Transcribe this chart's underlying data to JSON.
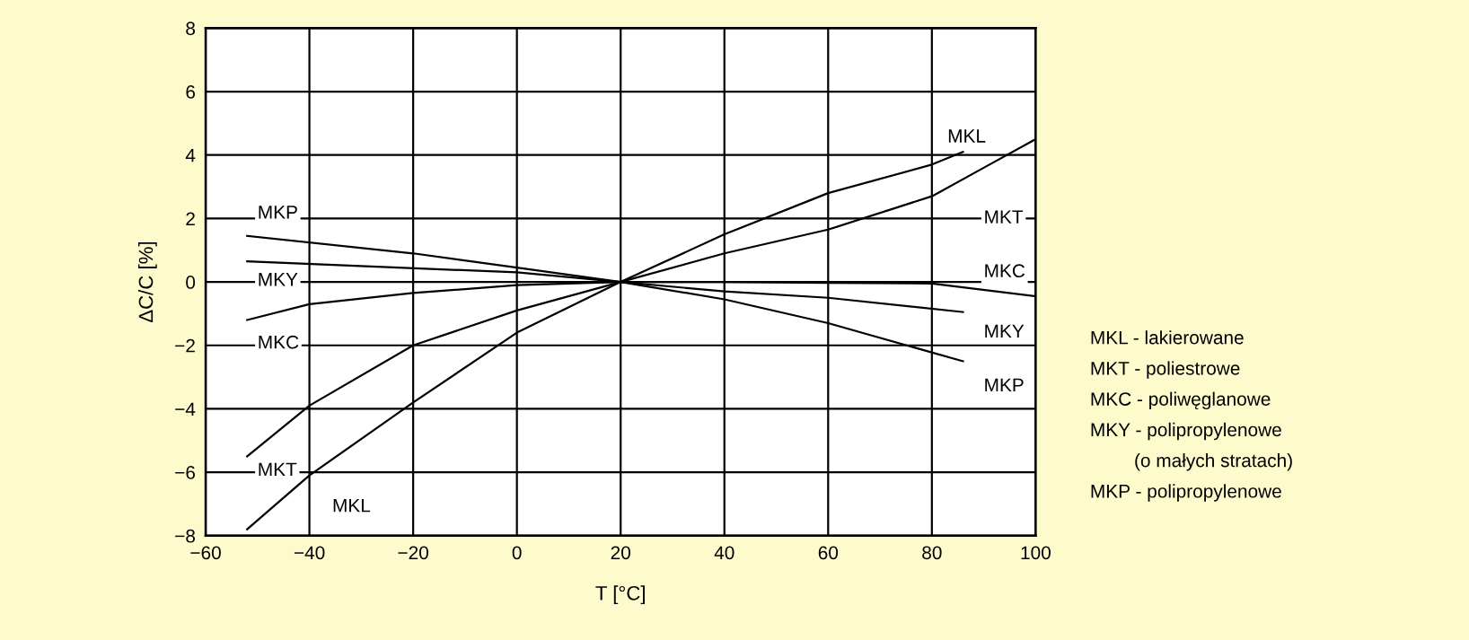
{
  "chart_data": {
    "type": "line",
    "xlabel": "T [°C]",
    "ylabel": "ΔC/C [%]",
    "xlim": [
      -60,
      100
    ],
    "xticks": [
      {
        "value": -60,
        "label": "−60"
      },
      {
        "value": -40,
        "label": "−40"
      },
      {
        "value": -20,
        "label": "−20"
      },
      0,
      20,
      40,
      60,
      80,
      100
    ],
    "ylim": [
      -8,
      8
    ],
    "yticks": [
      {
        "value": -8,
        "label": "−8"
      },
      {
        "value": -6,
        "label": "−6"
      },
      {
        "value": -4,
        "label": "−4"
      },
      {
        "value": -2,
        "label": "−2"
      },
      0,
      2,
      4,
      6,
      8
    ],
    "grid": true,
    "marker": "none",
    "line_style": "solid",
    "series": [
      {
        "name": "MKL",
        "color": "#000000",
        "x": [
          -52,
          -40,
          -20,
          0,
          20,
          40,
          60,
          80,
          86
        ],
        "values": [
          -7.8,
          -6.1,
          -3.8,
          -1.6,
          0,
          1.5,
          2.8,
          3.7,
          4.1
        ]
      },
      {
        "name": "MKT",
        "color": "#000000",
        "x": [
          -52,
          -40,
          -20,
          0,
          20,
          40,
          60,
          80,
          90,
          100
        ],
        "values": [
          -5.5,
          -3.9,
          -2.0,
          -0.9,
          0,
          0.9,
          1.65,
          2.7,
          3.6,
          4.5
        ]
      },
      {
        "name": "MKC",
        "color": "#000000",
        "x": [
          -52,
          -40,
          -20,
          0,
          20,
          40,
          60,
          80,
          100
        ],
        "values": [
          -1.2,
          -0.7,
          -0.35,
          -0.1,
          0,
          0,
          -0.03,
          -0.05,
          -0.45
        ]
      },
      {
        "name": "MKY",
        "color": "#000000",
        "x": [
          -52,
          0,
          20,
          40,
          60,
          86
        ],
        "values": [
          0.65,
          0.3,
          0,
          -0.3,
          -0.5,
          -0.95
        ]
      },
      {
        "name": "MKP",
        "color": "#000000",
        "x": [
          -52,
          -20,
          0,
          20,
          40,
          60,
          86
        ],
        "values": [
          1.45,
          0.9,
          0.45,
          0,
          -0.55,
          -1.3,
          -2.5
        ]
      }
    ],
    "annotations": [
      "MKL - lakierowane",
      "MKT - poliestrowe",
      "MKC - poliwęglanowe",
      "MKY - polipropylenowe",
      "(o małych stratach)",
      "MKP - polipropylenowe"
    ]
  }
}
